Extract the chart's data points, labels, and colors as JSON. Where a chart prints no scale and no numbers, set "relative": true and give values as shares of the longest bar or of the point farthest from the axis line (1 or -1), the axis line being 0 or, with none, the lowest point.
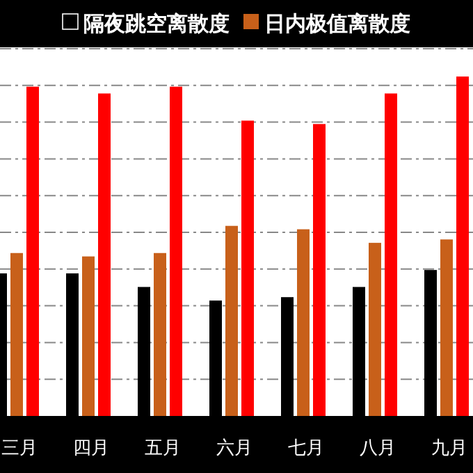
{
  "chart_data": {
    "type": "bar",
    "relative": true,
    "grid": "y",
    "legend": "top",
    "categories": [
      "三月",
      "四月",
      "五月",
      "六月",
      "七月",
      "八月",
      "九月"
    ],
    "series": [
      {
        "name": "隔夜跳空离散度",
        "color": "#000000",
        "values": [
          0.42,
          0.42,
          0.38,
          0.34,
          0.35,
          0.38,
          0.43
        ]
      },
      {
        "name": "日内极值离散度",
        "color": "#c8601a",
        "values": [
          0.48,
          0.47,
          0.48,
          0.56,
          0.55,
          0.51,
          0.52
        ]
      },
      {
        "color": "#ff0000",
        "values": [
          0.97,
          0.95,
          0.97,
          0.87,
          0.86,
          0.95,
          1
        ]
      }
    ]
  }
}
